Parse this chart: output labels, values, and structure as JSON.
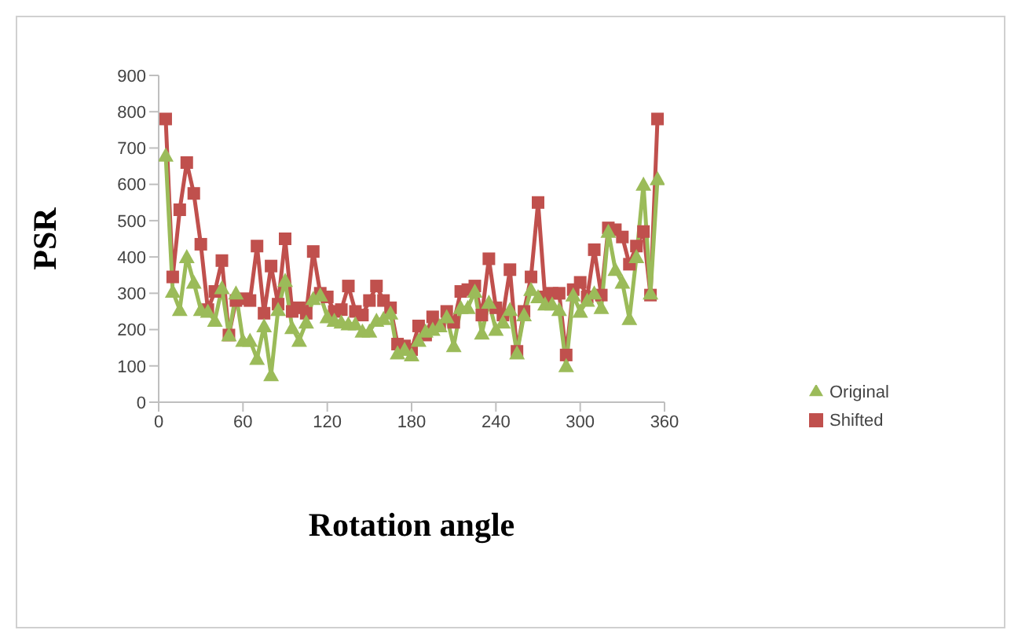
{
  "chart_data": {
    "type": "line",
    "xlabel": "Rotation angle",
    "ylabel": "PSR",
    "x": [
      5,
      10,
      15,
      20,
      25,
      30,
      35,
      40,
      45,
      50,
      55,
      60,
      65,
      70,
      75,
      80,
      85,
      90,
      95,
      100,
      105,
      110,
      115,
      120,
      125,
      130,
      135,
      140,
      145,
      150,
      155,
      160,
      165,
      170,
      175,
      180,
      185,
      190,
      195,
      200,
      205,
      210,
      215,
      220,
      225,
      230,
      235,
      240,
      245,
      250,
      255,
      260,
      265,
      270,
      275,
      280,
      285,
      290,
      295,
      300,
      305,
      310,
      315,
      320,
      325,
      330,
      335,
      340,
      345,
      350,
      355
    ],
    "series": [
      {
        "name": "Shifted",
        "color": "#c0504d",
        "marker": "square",
        "values": [
          780,
          345,
          530,
          660,
          575,
          435,
          255,
          305,
          390,
          185,
          280,
          285,
          280,
          430,
          245,
          375,
          270,
          450,
          250,
          260,
          245,
          415,
          300,
          290,
          250,
          255,
          320,
          250,
          240,
          280,
          320,
          280,
          260,
          160,
          155,
          145,
          210,
          185,
          235,
          210,
          250,
          220,
          305,
          310,
          320,
          240,
          395,
          260,
          240,
          365,
          140,
          250,
          345,
          550,
          290,
          300,
          300,
          130,
          310,
          330,
          290,
          420,
          295,
          480,
          475,
          455,
          380,
          430,
          470,
          295,
          780
        ]
      },
      {
        "name": "Original",
        "color": "#9bbb59",
        "marker": "triangle",
        "values": [
          680,
          305,
          255,
          400,
          330,
          255,
          250,
          225,
          315,
          185,
          300,
          170,
          170,
          120,
          210,
          75,
          255,
          335,
          205,
          170,
          220,
          285,
          295,
          235,
          225,
          220,
          215,
          215,
          195,
          195,
          225,
          230,
          245,
          135,
          145,
          130,
          170,
          195,
          200,
          210,
          235,
          155,
          260,
          260,
          305,
          190,
          275,
          200,
          220,
          255,
          135,
          240,
          310,
          290,
          270,
          270,
          255,
          100,
          295,
          250,
          280,
          300,
          260,
          470,
          365,
          330,
          230,
          400,
          600,
          300,
          615
        ]
      }
    ],
    "xlim": [
      0,
      360
    ],
    "xticks": [
      0,
      60,
      120,
      180,
      240,
      300,
      360
    ],
    "ylim": [
      0,
      900
    ],
    "yticks": [
      0,
      100,
      200,
      300,
      400,
      500,
      600,
      700,
      800,
      900
    ],
    "grid": false,
    "legend": "right",
    "line_style": "solid"
  }
}
